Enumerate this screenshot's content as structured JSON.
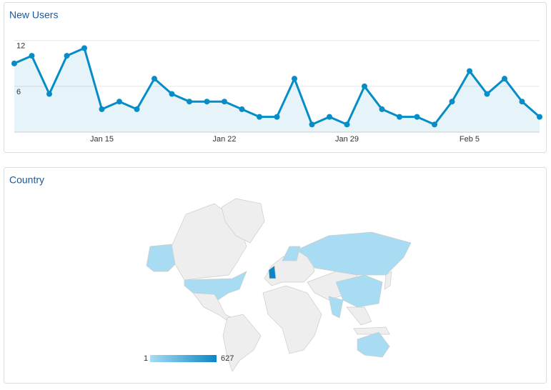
{
  "chart_data": [
    {
      "type": "line",
      "title": "New Users",
      "categories": [
        null,
        null,
        null,
        null,
        null,
        "Jan 15",
        null,
        null,
        null,
        null,
        null,
        null,
        "Jan 22",
        null,
        null,
        null,
        null,
        null,
        null,
        "Jan 29",
        null,
        null,
        null,
        null,
        null,
        null,
        "Feb 5",
        null,
        null,
        null,
        null
      ],
      "values": [
        9,
        10,
        5,
        10,
        11,
        3,
        4,
        3,
        7,
        5,
        4,
        4,
        4,
        3,
        2,
        2,
        7,
        1,
        2,
        1,
        6,
        3,
        2,
        2,
        1,
        4,
        8,
        5,
        7,
        4,
        2
      ],
      "color": "#058dc7",
      "ylim": [
        0,
        13
      ],
      "yticks": [
        6,
        12
      ],
      "grid": true
    },
    {
      "type": "map",
      "title": "Country",
      "scale_min": 1,
      "scale_max": 627,
      "color_low": "#a8dcf3",
      "color_high": "#0a86c6"
    }
  ]
}
